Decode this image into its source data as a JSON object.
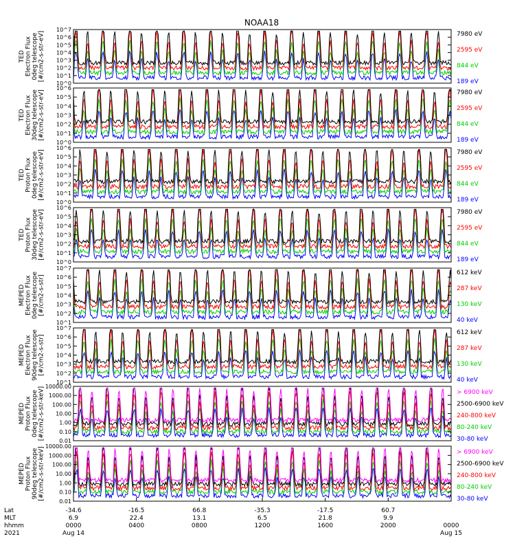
{
  "chart_data": {
    "type": "line",
    "title": "NOAA18",
    "xaxis": {
      "row_labels": [
        "Lat",
        "MLT",
        "hhmm",
        "2021"
      ],
      "ticks": [
        {
          "lat": "-34.6",
          "mlt": "6.9",
          "hhmm": "0000",
          "date": "Aug 14"
        },
        {
          "lat": "-16.5",
          "mlt": "22.4",
          "hhmm": "0400",
          "date": ""
        },
        {
          "lat": "66.8",
          "mlt": "13.1",
          "hhmm": "0800",
          "date": ""
        },
        {
          "lat": "-35.3",
          "mlt": "6.5",
          "hhmm": "1200",
          "date": ""
        },
        {
          "lat": "-17.5",
          "mlt": "21.8",
          "hhmm": "1600",
          "date": ""
        },
        {
          "lat": "60.7",
          "mlt": "9.9",
          "hhmm": "2000",
          "date": ""
        },
        {
          "lat": "",
          "mlt": "",
          "hhmm": "0000",
          "date": "Aug 15"
        }
      ]
    },
    "panels": [
      {
        "ylabel": [
          "TED",
          "Electron Flux",
          "0deg telescope",
          "[#/cm2-s-str-eV]"
        ],
        "yticks": [
          "10^0",
          "10^1",
          "10^2",
          "10^3",
          "10^4",
          "10^5",
          "10^6",
          "10^7"
        ],
        "ylim": [
          1,
          10000000
        ],
        "series": [
          {
            "name": "7980 eV",
            "color": "#000000"
          },
          {
            "name": "2595 eV",
            "color": "#ff0000"
          },
          {
            "name": "844 eV",
            "color": "#00cc00"
          },
          {
            "name": "189 eV",
            "color": "#0000ff"
          }
        ]
      },
      {
        "ylabel": [
          "TED",
          "Electron Flux",
          "30deg telescope",
          "[#/cm2-s-str-eV]"
        ],
        "yticks": [
          "10^0",
          "10^1",
          "10^2",
          "10^3",
          "10^4",
          "10^5",
          "10^6"
        ],
        "ylim": [
          1,
          1000000
        ],
        "series": [
          {
            "name": "7980 eV",
            "color": "#000000"
          },
          {
            "name": "2595 eV",
            "color": "#ff0000"
          },
          {
            "name": "844 eV",
            "color": "#00cc00"
          },
          {
            "name": "189 eV",
            "color": "#0000ff"
          }
        ]
      },
      {
        "ylabel": [
          "TED",
          "Proton Flux",
          "0deg telescope",
          "[#/cm2-s-str-eV]"
        ],
        "yticks": [
          "10^0",
          "10^1",
          "10^2",
          "10^3",
          "10^4",
          "10^5",
          "10^6"
        ],
        "ylim": [
          1,
          1000000
        ],
        "series": [
          {
            "name": "7980 eV",
            "color": "#000000"
          },
          {
            "name": "2595 eV",
            "color": "#ff0000"
          },
          {
            "name": "844 eV",
            "color": "#00cc00"
          },
          {
            "name": "189 eV",
            "color": "#0000ff"
          }
        ]
      },
      {
        "ylabel": [
          "TED",
          "Proton Flux",
          "30deg telescope",
          "[#/cm2-s-str-eV]"
        ],
        "yticks": [
          "10^0",
          "10^1",
          "10^2",
          "10^3",
          "10^4",
          "10^5",
          "10^6"
        ],
        "ylim": [
          1,
          1000000
        ],
        "series": [
          {
            "name": "7980 eV",
            "color": "#000000"
          },
          {
            "name": "2595 eV",
            "color": "#ff0000"
          },
          {
            "name": "844 eV",
            "color": "#00cc00"
          },
          {
            "name": "189 eV",
            "color": "#0000ff"
          }
        ]
      },
      {
        "ylabel": [
          "MEPED",
          "Electron Flux",
          "0deg telescope",
          "[#/cm2-s-str]"
        ],
        "yticks": [
          "10^1",
          "10^2",
          "10^3",
          "10^4",
          "10^5",
          "10^6",
          "10^7"
        ],
        "ylim": [
          10,
          10000000
        ],
        "series": [
          {
            "name": "612 keV",
            "color": "#000000"
          },
          {
            "name": "287 keV",
            "color": "#ff0000"
          },
          {
            "name": "130 keV",
            "color": "#00cc00"
          },
          {
            "name": "40 keV",
            "color": "#0000ff"
          }
        ]
      },
      {
        "ylabel": [
          "MEPED",
          "Electron Flux",
          "90deg telescope",
          "[#/cm2-s-str]"
        ],
        "yticks": [
          "10^1",
          "10^2",
          "10^3",
          "10^4",
          "10^5",
          "10^6",
          "10^7"
        ],
        "ylim": [
          10,
          10000000
        ],
        "series": [
          {
            "name": "612 keV",
            "color": "#000000"
          },
          {
            "name": "287 keV",
            "color": "#ff0000"
          },
          {
            "name": "130 keV",
            "color": "#00cc00"
          },
          {
            "name": "40 keV",
            "color": "#0000ff"
          }
        ]
      },
      {
        "ylabel": [
          "MEPED",
          "Proton Flux",
          "0deg telescope",
          "[#/cm2-s-str-keV]"
        ],
        "yticks": [
          "0.01",
          "0.10",
          "1.00",
          "10.00",
          "100.00",
          "1000.00",
          "10000.00"
        ],
        "ylim": [
          0.01,
          10000
        ],
        "series": [
          {
            "name": "> 6900 keV",
            "color": "#ff00ff"
          },
          {
            "name": "2500-6900 keV",
            "color": "#000000"
          },
          {
            "name": "240-800 keV",
            "color": "#ff0000"
          },
          {
            "name": "80-240 keV",
            "color": "#00cc00"
          },
          {
            "name": "30-80 keV",
            "color": "#0000ff"
          }
        ]
      },
      {
        "ylabel": [
          "MEPED",
          "Proton Flux",
          "90deg telescope",
          "[#/cm2-s-str-keV]"
        ],
        "yticks": [
          "0.01",
          "0.10",
          "1.00",
          "10.00",
          "100.00",
          "1000.00",
          "10000.00"
        ],
        "ylim": [
          0.01,
          10000
        ],
        "series": [
          {
            "name": "> 6900 keV",
            "color": "#ff00ff"
          },
          {
            "name": "2500-6900 keV",
            "color": "#000000"
          },
          {
            "name": "240-800 keV",
            "color": "#ff0000"
          },
          {
            "name": "80-240 keV",
            "color": "#00cc00"
          },
          {
            "name": "30-80 keV",
            "color": "#0000ff"
          }
        ]
      }
    ]
  }
}
